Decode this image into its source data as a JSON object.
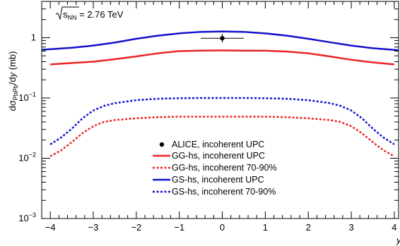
{
  "chart_data": {
    "type": "line",
    "annotation": "√s_NN = 2.76 TeV",
    "annotation_parts": {
      "prefix": "s",
      "sub": "NN",
      "suffix": " = 2.76 TeV"
    },
    "ylabel": "dσ_PbPb/dy (mb)",
    "ylabel_parts": {
      "a": "dσ",
      "sub": "PbPb",
      "b": "/d",
      "c": "y",
      "d": " (mb)"
    },
    "xlabel": "y",
    "xlim": [
      -4.2,
      4.1
    ],
    "ylim": [
      0.001,
      4
    ],
    "yscale": "log",
    "x_ticks": [
      -4,
      -3,
      -2,
      -1,
      0,
      1,
      2,
      3,
      4
    ],
    "x_tick_labels": [
      "−4",
      "−3",
      "−2",
      "−1",
      "0",
      "1",
      "2",
      "3",
      "4"
    ],
    "y_tick_labels": [
      {
        "value": 1,
        "base": "1",
        "exp": ""
      },
      {
        "value": 0.1,
        "base": "10",
        "exp": "−1"
      },
      {
        "value": 0.01,
        "base": "10",
        "exp": "−2"
      },
      {
        "value": 0.001,
        "base": "10",
        "exp": "−3"
      }
    ],
    "points": [
      {
        "name": "ALICE, incoherent UPC",
        "x": 0,
        "y": 0.98,
        "xerr": 0.5,
        "yerr_lo": 0.15,
        "yerr_hi": 0.18,
        "color": "#000000"
      }
    ],
    "series": [
      {
        "name": "GG-hs, incoherent UPC",
        "color": "#ee2222",
        "dash": "solid",
        "x": [
          -4.0,
          -3.5,
          -3.0,
          -2.5,
          -2.0,
          -1.5,
          -1.0,
          -0.5,
          0.0,
          0.5,
          1.0,
          1.5,
          2.0,
          2.5,
          3.0,
          3.5,
          4.0
        ],
        "y": [
          0.36,
          0.38,
          0.4,
          0.44,
          0.49,
          0.55,
          0.6,
          0.61,
          0.615,
          0.61,
          0.61,
          0.59,
          0.55,
          0.49,
          0.43,
          0.39,
          0.36
        ]
      },
      {
        "name": "GG-hs, incoherent 70-90%",
        "color": "#ee2222",
        "dash": "dotted",
        "x": [
          -4.0,
          -3.75,
          -3.5,
          -3.25,
          -3.0,
          -2.75,
          -2.5,
          -2.0,
          -1.5,
          -1.0,
          -0.5,
          0.0,
          0.5,
          1.0,
          1.5,
          2.0,
          2.5,
          2.75,
          3.0,
          3.25,
          3.5,
          3.75,
          4.0
        ],
        "y": [
          0.0108,
          0.0135,
          0.0185,
          0.026,
          0.034,
          0.04,
          0.043,
          0.046,
          0.048,
          0.049,
          0.049,
          0.049,
          0.049,
          0.049,
          0.048,
          0.046,
          0.043,
          0.04,
          0.034,
          0.026,
          0.0185,
          0.0135,
          0.0108
        ]
      },
      {
        "name": "GS-hs, incoherent UPC",
        "color": "#1111cc",
        "dash": "solid",
        "x": [
          -4.2,
          -3.5,
          -3.0,
          -2.5,
          -2.0,
          -1.5,
          -1.0,
          -0.5,
          0.0,
          0.5,
          1.0,
          1.5,
          2.0,
          2.5,
          3.0,
          3.5,
          4.1
        ],
        "y": [
          0.63,
          0.68,
          0.74,
          0.83,
          0.96,
          1.08,
          1.18,
          1.25,
          1.27,
          1.25,
          1.18,
          1.08,
          0.96,
          0.84,
          0.74,
          0.67,
          0.62
        ]
      },
      {
        "name": "GS-hs, incoherent 70-90%",
        "color": "#1111cc",
        "dash": "dotted",
        "x": [
          -4.0,
          -3.75,
          -3.5,
          -3.25,
          -3.0,
          -2.75,
          -2.5,
          -2.0,
          -1.5,
          -1.0,
          -0.5,
          0.0,
          0.5,
          1.0,
          1.5,
          2.0,
          2.5,
          2.75,
          3.0,
          3.25,
          3.5,
          3.75,
          4.0
        ],
        "y": [
          0.017,
          0.022,
          0.031,
          0.046,
          0.062,
          0.074,
          0.082,
          0.092,
          0.097,
          0.099,
          0.1,
          0.1,
          0.1,
          0.099,
          0.097,
          0.092,
          0.082,
          0.074,
          0.062,
          0.046,
          0.031,
          0.022,
          0.017
        ]
      }
    ],
    "legend": [
      {
        "label": "ALICE, incoherent UPC",
        "kind": "marker",
        "color": "#000000"
      },
      {
        "label": "GG-hs, incoherent UPC",
        "kind": "solid",
        "color": "#ee2222"
      },
      {
        "label": "GG-hs, incoherent 70-90%",
        "kind": "dotted",
        "color": "#ee2222"
      },
      {
        "label": "GS-hs, incoherent UPC",
        "kind": "solid",
        "color": "#1111cc"
      },
      {
        "label": "GS-hs, incoherent 70-90%",
        "kind": "dotted",
        "color": "#1111cc"
      }
    ],
    "legend_position": "lower-center",
    "grid": false
  }
}
